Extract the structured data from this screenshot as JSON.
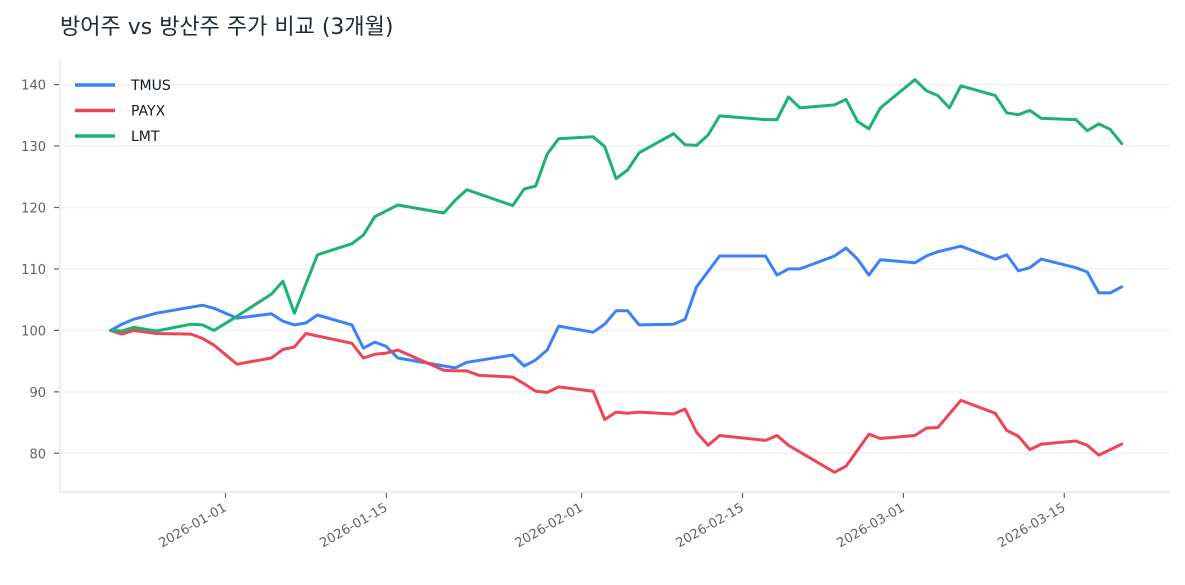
{
  "chart_data": {
    "type": "line",
    "title": "방어주 vs 방산주 주가 비교 (3개월)",
    "xlabel": "",
    "ylabel": "",
    "xlim": [
      "2025-12-17",
      "2026-03-24"
    ],
    "ylim": [
      73.7,
      144.0
    ],
    "yticks": [
      80,
      90,
      100,
      110,
      120,
      130,
      140
    ],
    "xticks": [
      "2026-01-01",
      "2026-01-15",
      "2026-02-01",
      "2026-02-15",
      "2026-03-01",
      "2026-03-15"
    ],
    "grid": "horizontal",
    "legend_placement": "top-left",
    "series": [
      {
        "name": "TMUS",
        "color": "#3b82f6",
        "points": [
          [
            "2025-12-22",
            100.0
          ],
          [
            "2025-12-23",
            101.0
          ],
          [
            "2025-12-24",
            101.8
          ],
          [
            "2025-12-26",
            102.8
          ],
          [
            "2025-12-30",
            104.1
          ],
          [
            "2025-12-31",
            103.6
          ],
          [
            "2026-01-02",
            102.0
          ],
          [
            "2026-01-05",
            102.7
          ],
          [
            "2026-01-06",
            101.5
          ],
          [
            "2026-01-07",
            100.9
          ],
          [
            "2026-01-08",
            101.2
          ],
          [
            "2026-01-09",
            102.5
          ],
          [
            "2026-01-12",
            100.9
          ],
          [
            "2026-01-13",
            97.1
          ],
          [
            "2026-01-14",
            98.1
          ],
          [
            "2026-01-15",
            97.4
          ],
          [
            "2026-01-16",
            95.5
          ],
          [
            "2026-01-21",
            93.9
          ],
          [
            "2026-01-22",
            94.8
          ],
          [
            "2026-01-26",
            96.0
          ],
          [
            "2026-01-27",
            94.2
          ],
          [
            "2026-01-28",
            95.2
          ],
          [
            "2026-01-29",
            96.8
          ],
          [
            "2026-01-30",
            100.7
          ],
          [
            "2026-02-02",
            99.7
          ],
          [
            "2026-02-03",
            101.0
          ],
          [
            "2026-02-04",
            103.2
          ],
          [
            "2026-02-05",
            103.2
          ],
          [
            "2026-02-06",
            100.9
          ],
          [
            "2026-02-09",
            101.0
          ],
          [
            "2026-02-10",
            101.8
          ],
          [
            "2026-02-11",
            107.1
          ],
          [
            "2026-02-13",
            112.1
          ],
          [
            "2026-02-17",
            112.1
          ],
          [
            "2026-02-18",
            109.0
          ],
          [
            "2026-02-19",
            110.0
          ],
          [
            "2026-02-20",
            110.0
          ],
          [
            "2026-02-23",
            112.1
          ],
          [
            "2026-02-24",
            113.4
          ],
          [
            "2026-02-25",
            111.6
          ],
          [
            "2026-02-26",
            109.0
          ],
          [
            "2026-02-27",
            111.5
          ],
          [
            "2026-03-02",
            111.0
          ],
          [
            "2026-03-03",
            112.1
          ],
          [
            "2026-03-04",
            112.8
          ],
          [
            "2026-03-06",
            113.7
          ],
          [
            "2026-03-09",
            111.6
          ],
          [
            "2026-03-10",
            112.3
          ],
          [
            "2026-03-11",
            109.7
          ],
          [
            "2026-03-12",
            110.2
          ],
          [
            "2026-03-13",
            111.6
          ],
          [
            "2026-03-16",
            110.2
          ],
          [
            "2026-03-17",
            109.5
          ],
          [
            "2026-03-18",
            106.1
          ],
          [
            "2026-03-19",
            106.1
          ],
          [
            "2026-03-20",
            107.1
          ]
        ]
      },
      {
        "name": "PAYX",
        "color": "#ef4455",
        "points": [
          [
            "2025-12-22",
            100.0
          ],
          [
            "2025-12-23",
            99.4
          ],
          [
            "2025-12-24",
            100.0
          ],
          [
            "2025-12-26",
            99.5
          ],
          [
            "2025-12-29",
            99.4
          ],
          [
            "2025-12-30",
            98.7
          ],
          [
            "2025-12-31",
            97.6
          ],
          [
            "2026-01-02",
            94.5
          ],
          [
            "2026-01-05",
            95.5
          ],
          [
            "2026-01-06",
            96.9
          ],
          [
            "2026-01-07",
            97.3
          ],
          [
            "2026-01-08",
            99.5
          ],
          [
            "2026-01-12",
            97.9
          ],
          [
            "2026-01-13",
            95.5
          ],
          [
            "2026-01-14",
            96.1
          ],
          [
            "2026-01-15",
            96.3
          ],
          [
            "2026-01-16",
            96.8
          ],
          [
            "2026-01-20",
            93.5
          ],
          [
            "2026-01-21",
            93.4
          ],
          [
            "2026-01-22",
            93.4
          ],
          [
            "2026-01-23",
            92.7
          ],
          [
            "2026-01-26",
            92.4
          ],
          [
            "2026-01-27",
            91.3
          ],
          [
            "2026-01-28",
            90.1
          ],
          [
            "2026-01-29",
            89.9
          ],
          [
            "2026-01-30",
            90.8
          ],
          [
            "2026-02-02",
            90.1
          ],
          [
            "2026-02-03",
            85.5
          ],
          [
            "2026-02-04",
            86.7
          ],
          [
            "2026-02-05",
            86.5
          ],
          [
            "2026-02-06",
            86.7
          ],
          [
            "2026-02-09",
            86.4
          ],
          [
            "2026-02-10",
            87.2
          ],
          [
            "2026-02-11",
            83.4
          ],
          [
            "2026-02-12",
            81.3
          ],
          [
            "2026-02-13",
            82.9
          ],
          [
            "2026-02-17",
            82.1
          ],
          [
            "2026-02-18",
            82.9
          ],
          [
            "2026-02-19",
            81.3
          ],
          [
            "2026-02-23",
            76.9
          ],
          [
            "2026-02-24",
            77.9
          ],
          [
            "2026-02-25",
            80.5
          ],
          [
            "2026-02-26",
            83.1
          ],
          [
            "2026-02-27",
            82.4
          ],
          [
            "2026-03-02",
            82.9
          ],
          [
            "2026-03-03",
            84.1
          ],
          [
            "2026-03-04",
            84.2
          ],
          [
            "2026-03-06",
            88.6
          ],
          [
            "2026-03-09",
            86.5
          ],
          [
            "2026-03-10",
            83.7
          ],
          [
            "2026-03-11",
            82.8
          ],
          [
            "2026-03-12",
            80.6
          ],
          [
            "2026-03-13",
            81.5
          ],
          [
            "2026-03-16",
            82.0
          ],
          [
            "2026-03-17",
            81.3
          ],
          [
            "2026-03-18",
            79.7
          ],
          [
            "2026-03-19",
            80.6
          ],
          [
            "2026-03-20",
            81.5
          ]
        ]
      },
      {
        "name": "LMT",
        "color": "#1db173",
        "points": [
          [
            "2025-12-22",
            100.0
          ],
          [
            "2025-12-23",
            99.9
          ],
          [
            "2025-12-24",
            100.5
          ],
          [
            "2025-12-26",
            99.9
          ],
          [
            "2025-12-29",
            101.0
          ],
          [
            "2025-12-30",
            100.9
          ],
          [
            "2025-12-31",
            100.0
          ],
          [
            "2026-01-02",
            102.3
          ],
          [
            "2026-01-05",
            105.9
          ],
          [
            "2026-01-06",
            108.0
          ],
          [
            "2026-01-07",
            102.8
          ],
          [
            "2026-01-09",
            112.3
          ],
          [
            "2026-01-12",
            114.1
          ],
          [
            "2026-01-13",
            115.5
          ],
          [
            "2026-01-14",
            118.5
          ],
          [
            "2026-01-16",
            120.4
          ],
          [
            "2026-01-20",
            119.1
          ],
          [
            "2026-01-21",
            121.2
          ],
          [
            "2026-01-22",
            122.9
          ],
          [
            "2026-01-26",
            120.3
          ],
          [
            "2026-01-27",
            123.0
          ],
          [
            "2026-01-28",
            123.5
          ],
          [
            "2026-01-29",
            128.7
          ],
          [
            "2026-01-30",
            131.2
          ],
          [
            "2026-02-02",
            131.5
          ],
          [
            "2026-02-03",
            129.9
          ],
          [
            "2026-02-04",
            124.7
          ],
          [
            "2026-02-05",
            126.1
          ],
          [
            "2026-02-06",
            128.9
          ],
          [
            "2026-02-09",
            132.0
          ],
          [
            "2026-02-10",
            130.2
          ],
          [
            "2026-02-11",
            130.1
          ],
          [
            "2026-02-12",
            131.8
          ],
          [
            "2026-02-13",
            134.9
          ],
          [
            "2026-02-17",
            134.3
          ],
          [
            "2026-02-18",
            134.3
          ],
          [
            "2026-02-19",
            138.0
          ],
          [
            "2026-02-20",
            136.2
          ],
          [
            "2026-02-23",
            136.7
          ],
          [
            "2026-02-24",
            137.6
          ],
          [
            "2026-02-25",
            134.0
          ],
          [
            "2026-02-26",
            132.8
          ],
          [
            "2026-02-27",
            136.2
          ],
          [
            "2026-03-02",
            140.8
          ],
          [
            "2026-03-03",
            139.0
          ],
          [
            "2026-03-04",
            138.2
          ],
          [
            "2026-03-05",
            136.2
          ],
          [
            "2026-03-06",
            139.8
          ],
          [
            "2026-03-09",
            138.2
          ],
          [
            "2026-03-10",
            135.4
          ],
          [
            "2026-03-11",
            135.1
          ],
          [
            "2026-03-12",
            135.8
          ],
          [
            "2026-03-13",
            134.5
          ],
          [
            "2026-03-16",
            134.3
          ],
          [
            "2026-03-17",
            132.5
          ],
          [
            "2026-03-18",
            133.6
          ],
          [
            "2026-03-19",
            132.7
          ],
          [
            "2026-03-20",
            130.4
          ]
        ]
      }
    ]
  }
}
